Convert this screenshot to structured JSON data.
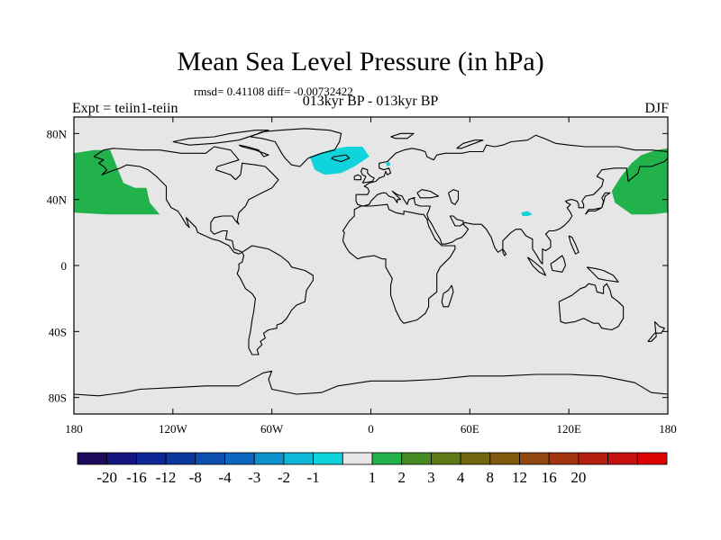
{
  "title": "Mean Sea Level Pressure (in hPa)",
  "subtitle": "rmsd= 0.41108 diff= -0.00732422",
  "center_label": "013kyr BP - 013kyr BP",
  "left_label": "Expt = teiin1-teiin",
  "right_label": "DJF",
  "map": {
    "projection": "cylindrical-equidistant",
    "lon_range": [
      -180,
      180
    ],
    "lat_range": [
      -90,
      90
    ],
    "background_color": "#e6e6e6",
    "coastline_color": "#000000",
    "x_ticks": [
      {
        "lon": -180,
        "label": "180"
      },
      {
        "lon": -120,
        "label": "120W"
      },
      {
        "lon": -60,
        "label": "60W"
      },
      {
        "lon": 0,
        "label": "0"
      },
      {
        "lon": 60,
        "label": "60E"
      },
      {
        "lon": 120,
        "label": "120E"
      },
      {
        "lon": 180,
        "label": "180"
      }
    ],
    "y_ticks": [
      {
        "lat": 80,
        "label": "80N"
      },
      {
        "lat": 40,
        "label": "40N"
      },
      {
        "lat": 0,
        "label": "0"
      },
      {
        "lat": -40,
        "label": "40S"
      },
      {
        "lat": -80,
        "label": "80S"
      }
    ],
    "anomaly_regions": [
      {
        "bin": "1 to 2",
        "color": "#22b24c",
        "points": [
          [
            -180,
            68
          ],
          [
            -168,
            70
          ],
          [
            -158,
            70
          ],
          [
            -154,
            60
          ],
          [
            -150,
            50
          ],
          [
            -143,
            47
          ],
          [
            -136,
            47
          ],
          [
            -134,
            38
          ],
          [
            -128,
            31
          ],
          [
            -140,
            31
          ],
          [
            -160,
            31
          ],
          [
            -180,
            32
          ]
        ]
      },
      {
        "bin": "1 to 2",
        "color": "#22b24c",
        "points": [
          [
            180,
            71
          ],
          [
            173,
            70
          ],
          [
            164,
            67
          ],
          [
            158,
            62
          ],
          [
            151,
            53
          ],
          [
            146,
            45
          ],
          [
            148,
            38
          ],
          [
            158,
            31
          ],
          [
            170,
            31
          ],
          [
            180,
            32
          ]
        ]
      },
      {
        "bin": "-2 to -1",
        "color": "#0fd4dc",
        "points": [
          [
            -37,
            66
          ],
          [
            -25,
            70
          ],
          [
            -15,
            72
          ],
          [
            -5,
            72
          ],
          [
            -1,
            66
          ],
          [
            -10,
            60
          ],
          [
            -18,
            56
          ],
          [
            -28,
            55
          ],
          [
            -34,
            58
          ]
        ]
      },
      {
        "bin": "-2 to -1",
        "color": "#0fd4dc",
        "points": [
          [
            9,
            62
          ],
          [
            11,
            63
          ],
          [
            12,
            61
          ],
          [
            10,
            60
          ]
        ]
      },
      {
        "bin": "-2 to -1",
        "color": "#0fd4dc",
        "points": [
          [
            91,
            32
          ],
          [
            95,
            33
          ],
          [
            98,
            31
          ],
          [
            95,
            30
          ],
          [
            92,
            30
          ]
        ]
      }
    ]
  },
  "colorbar": {
    "colors": [
      "#1d0a5a",
      "#14157e",
      "#0e2797",
      "#0a389f",
      "#0c4fae",
      "#0d66bf",
      "#0f91cb",
      "#0fb7d8",
      "#0fd4dc",
      "#e6e6e6",
      "#22b24c",
      "#458a22",
      "#5e7a16",
      "#706610",
      "#80580e",
      "#914710",
      "#a23410",
      "#b41f10",
      "#c80f10",
      "#dc0303"
    ],
    "labels": [
      "-20",
      "-16",
      "-12",
      "-8",
      "-4",
      "-3",
      "-2",
      "-1",
      "1",
      "2",
      "3",
      "4",
      "8",
      "12",
      "16",
      "20"
    ]
  }
}
